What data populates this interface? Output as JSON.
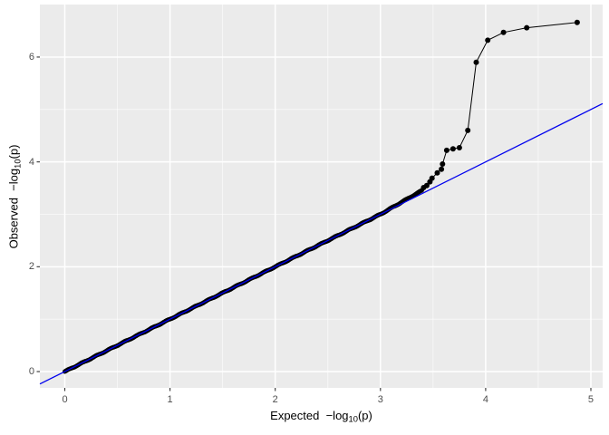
{
  "figure": {
    "background": "#ffffff",
    "panel_background": "#ebebeb"
  },
  "chart_data": {
    "type": "scatter",
    "subtype": "qq-plot",
    "xlabel": {
      "prefix": "Expected  −log",
      "sub": "10",
      "suffix": "(p)"
    },
    "ylabel": {
      "prefix": "Observed  −log",
      "sub": "10",
      "suffix": "(p)"
    },
    "xlim": [
      -0.237,
      5.112
    ],
    "ylim": [
      -0.311,
      7.002
    ],
    "x_ticks": {
      "major": [
        0,
        1,
        2,
        3,
        4,
        5
      ],
      "minor": [
        0.5,
        1.5,
        2.5,
        3.5,
        4.5
      ]
    },
    "y_ticks": {
      "major": [
        0,
        2,
        4,
        6
      ],
      "minor": [
        1,
        3,
        5
      ]
    },
    "grid": "major+minor",
    "legend": "none",
    "reference_line": {
      "slope": 1,
      "intercept": 0,
      "color": "#0000ee",
      "width": 1.3
    },
    "dense_band": {
      "x_start": 0,
      "x_end": 3.4,
      "step": 0.009,
      "point_radius": 2.5,
      "deviation_start_x": 3.0,
      "deviation_rate": 0.15,
      "jitter": 0.007,
      "note": "dense overlapping points lying on the identity line from (0,0) to (3.4,3.45)"
    },
    "points": [
      [
        3.41,
        3.51
      ],
      [
        3.44,
        3.55
      ],
      [
        3.47,
        3.62
      ],
      [
        3.49,
        3.69
      ],
      [
        3.54,
        3.79
      ],
      [
        3.58,
        3.86
      ],
      [
        3.59,
        3.96
      ],
      [
        3.63,
        4.22
      ],
      [
        3.69,
        4.25
      ],
      [
        3.75,
        4.27
      ],
      [
        3.83,
        4.6
      ],
      [
        3.91,
        5.9
      ],
      [
        4.02,
        6.32
      ],
      [
        4.17,
        6.47
      ],
      [
        4.39,
        6.56
      ],
      [
        4.87,
        6.66
      ]
    ],
    "outlier_point_radius": 3.0,
    "point_color": "#000000",
    "line_color": "#000000",
    "grid_major_color": "#ffffff",
    "grid_minor_color": "#ffffff",
    "tick_mark_color": "#333333",
    "tick_label_color": "#4d4d4d",
    "axis_title_color": "#000000"
  }
}
